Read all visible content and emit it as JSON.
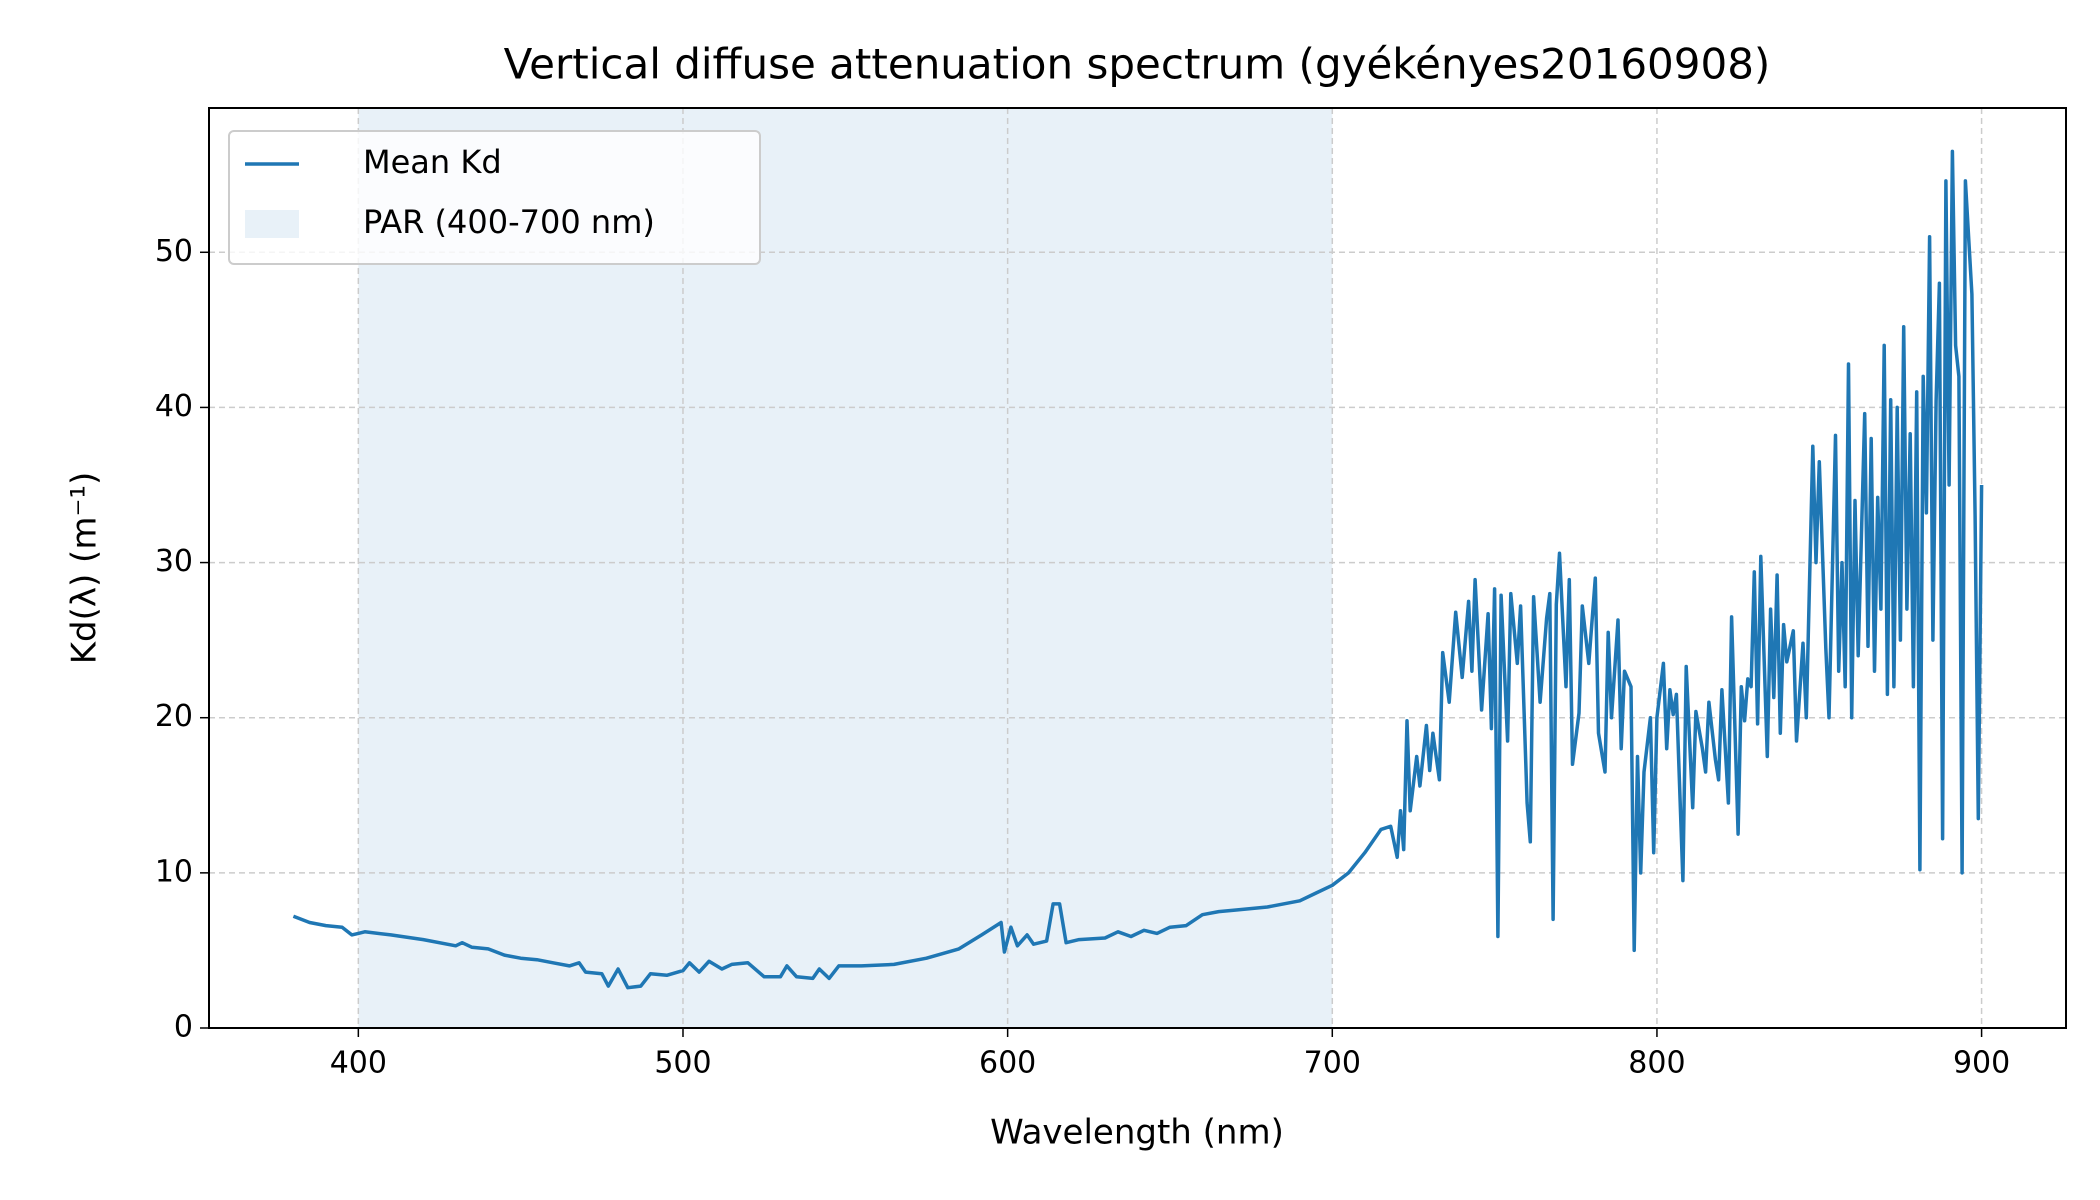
{
  "chart_data": {
    "type": "line",
    "title": "Vertical diffuse attenuation spectrum (gyékényes20160908)",
    "x_label": "Wavelength (nm)",
    "y_label": "Kd(λ) (m⁻¹)",
    "xlim": [
      354,
      926
    ],
    "ylim": [
      0,
      59.3
    ],
    "xticks": [
      400,
      500,
      600,
      700,
      800,
      900
    ],
    "yticks": [
      0,
      10,
      20,
      30,
      40,
      50
    ],
    "grid": true,
    "legend": "upper left",
    "span": {
      "name": "PAR (400-700 nm)",
      "x": [
        400,
        700
      ],
      "color": "#e8f1f8"
    },
    "x": [
      380,
      385,
      390,
      395,
      398,
      400,
      402,
      410,
      420,
      430,
      432,
      435,
      440,
      445,
      450,
      455,
      460,
      465,
      468,
      470,
      475,
      477,
      480,
      483,
      487,
      490,
      495,
      500,
      502,
      505,
      508,
      512,
      515,
      520,
      525,
      530,
      532,
      535,
      540,
      542,
      545,
      548,
      555,
      565,
      575,
      585,
      592,
      598,
      599,
      601,
      603,
      606,
      608,
      612,
      614,
      616,
      618,
      622,
      630,
      634,
      638,
      642,
      646,
      650,
      655,
      660,
      665,
      670,
      680,
      690,
      695,
      700,
      705,
      710,
      715,
      718,
      720,
      721,
      722,
      723,
      724,
      726,
      727,
      729,
      730,
      731,
      733,
      734,
      736,
      738,
      740,
      742,
      743,
      744,
      746,
      748,
      749,
      750,
      751,
      752,
      754,
      755,
      757,
      758,
      760,
      761,
      762,
      764,
      766,
      767,
      768,
      769,
      770,
      772,
      773,
      774,
      776,
      777,
      779,
      781,
      782,
      784,
      785,
      786,
      788,
      789,
      790,
      792,
      793,
      794,
      795,
      796,
      798,
      799,
      800,
      802,
      803,
      804,
      805,
      806,
      808,
      809,
      811,
      812,
      814,
      815,
      816,
      818,
      819,
      820,
      822,
      823,
      825,
      826,
      827,
      828,
      829,
      830,
      831,
      832,
      834,
      835,
      836,
      837,
      838,
      839,
      840,
      842,
      843,
      845,
      846,
      848,
      849,
      850,
      852,
      853,
      855,
      856,
      857,
      858,
      859,
      860,
      861,
      862,
      864,
      865,
      866,
      867,
      868,
      869,
      870,
      871,
      872,
      873,
      874,
      875,
      876,
      877,
      878,
      879,
      880,
      881,
      882,
      883,
      884,
      885,
      886,
      887,
      888,
      889,
      890,
      891,
      892,
      893,
      894,
      895,
      897,
      898,
      899,
      900
    ],
    "series": [
      {
        "name": "Mean Kd",
        "color": "#1f77b4",
        "values": [
          7.2,
          6.8,
          6.6,
          6.5,
          6.0,
          6.1,
          6.2,
          6.0,
          5.7,
          5.3,
          5.5,
          5.2,
          5.1,
          4.7,
          4.5,
          4.4,
          4.2,
          4.0,
          4.2,
          3.6,
          3.5,
          2.7,
          3.8,
          2.6,
          2.7,
          3.5,
          3.4,
          3.7,
          4.2,
          3.6,
          4.3,
          3.8,
          4.1,
          4.2,
          3.3,
          3.3,
          4.0,
          3.3,
          3.2,
          3.8,
          3.2,
          4.0,
          4.0,
          4.1,
          4.5,
          5.1,
          6.0,
          6.8,
          4.9,
          6.5,
          5.3,
          6.0,
          5.4,
          5.6,
          8.0,
          8.0,
          5.5,
          5.7,
          5.8,
          6.2,
          5.9,
          6.3,
          6.1,
          6.5,
          6.6,
          7.3,
          7.5,
          7.6,
          7.8,
          8.2,
          8.7,
          9.2,
          10.0,
          11.3,
          12.8,
          13.0,
          11.0,
          14.0,
          11.5,
          19.8,
          14.0,
          17.5,
          15.6,
          19.5,
          16.6,
          19.0,
          16.0,
          24.2,
          21.0,
          26.8,
          22.6,
          27.5,
          23.0,
          28.9,
          20.5,
          26.7,
          19.3,
          28.3,
          5.9,
          27.9,
          18.5,
          28.0,
          23.5,
          27.2,
          14.5,
          12.0,
          27.8,
          21.0,
          26.4,
          28.0,
          7.0,
          27.3,
          30.6,
          22.0,
          28.9,
          17.0,
          20.3,
          27.2,
          23.5,
          29.0,
          19.0,
          16.5,
          25.5,
          20.0,
          26.3,
          18.0,
          23.0,
          22.0,
          5.0,
          17.5,
          10.0,
          16.5,
          20.0,
          11.3,
          20.0,
          23.5,
          18.0,
          21.8,
          20.2,
          21.5,
          9.5,
          23.3,
          14.2,
          20.4,
          18.0,
          16.5,
          21.0,
          17.3,
          16.0,
          21.8,
          14.5,
          26.5,
          12.5,
          22.0,
          19.8,
          22.5,
          22.0,
          29.4,
          19.6,
          30.4,
          17.5,
          27.0,
          21.3,
          29.2,
          19.0,
          26.0,
          23.6,
          25.6,
          18.5,
          24.8,
          20.0,
          37.5,
          30.0,
          36.5,
          24.5,
          20.0,
          38.2,
          23.0,
          30.0,
          22.0,
          42.8,
          20.0,
          34.0,
          24.0,
          39.6,
          24.6,
          38.0,
          23.0,
          34.2,
          27.0,
          44.0,
          21.5,
          40.5,
          22.0,
          40.0,
          25.0,
          45.2,
          27.0,
          38.3,
          22.0,
          41.0,
          10.2,
          42.0,
          33.2,
          51.0,
          25.0,
          40.4,
          48.0,
          12.2,
          54.6,
          35.0,
          56.5,
          44.0,
          42.0,
          10.0,
          54.6,
          47.3,
          33.0,
          13.5,
          35.0
        ]
      }
    ]
  }
}
